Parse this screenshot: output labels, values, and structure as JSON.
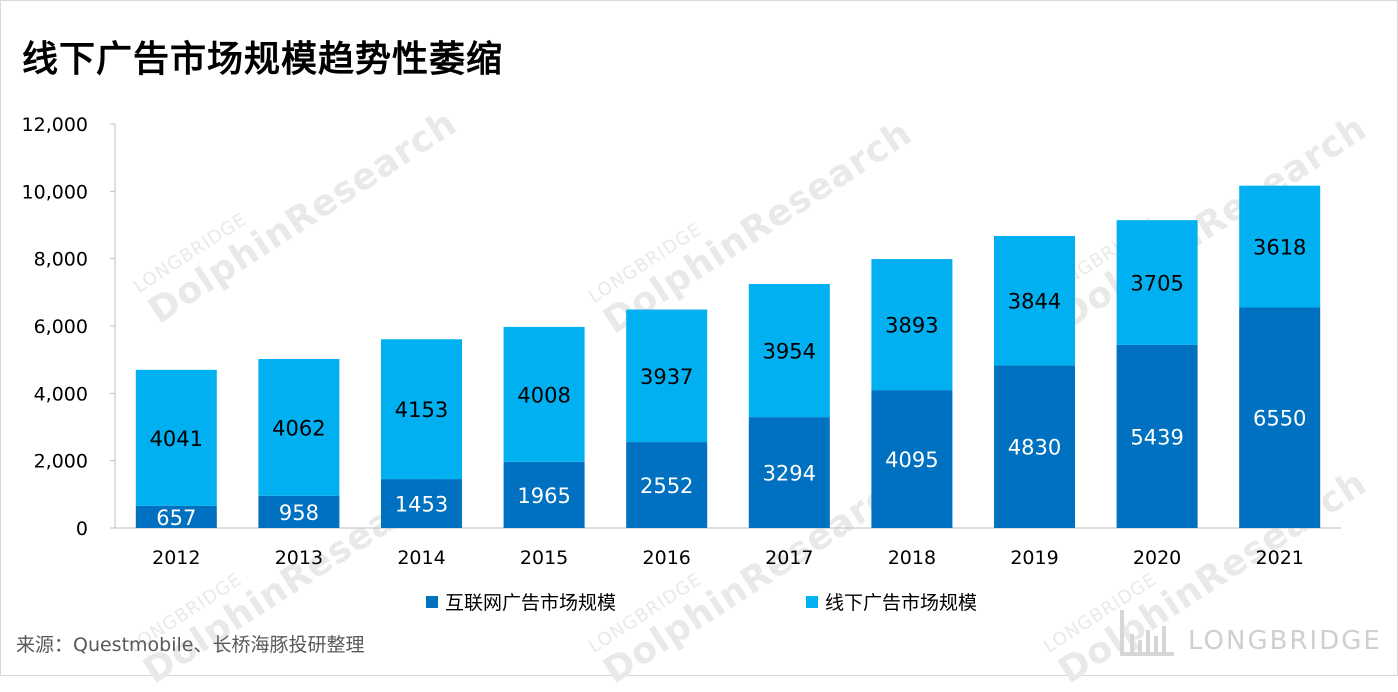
{
  "title": "线下广告市场规模趋势性萎缩",
  "source": "来源：Questmobile、长桥海豚投研整理",
  "watermark": {
    "line1": "LONGBRIDGE",
    "line2": "DolphinResearch"
  },
  "brand": "LONGBRIDGE",
  "colors": {
    "internet": "#0070C0",
    "offline": "#00B0F0",
    "axis": "#bfbfbf",
    "label_dark": "#000000",
    "label_light": "#ffffff"
  },
  "chart_data": {
    "type": "bar",
    "stacked": true,
    "title": "线下广告市场规模趋势性萎缩",
    "xlabel": "",
    "ylabel": "",
    "categories": [
      "2012",
      "2013",
      "2014",
      "2015",
      "2016",
      "2017",
      "2018",
      "2019",
      "2020",
      "2021"
    ],
    "series": [
      {
        "name": "互联网广告市场规模",
        "color": "#0070C0",
        "label_color": "#ffffff",
        "values": [
          657,
          958,
          1453,
          1965,
          2552,
          3294,
          4095,
          4830,
          5439,
          6550
        ]
      },
      {
        "name": "线下广告市场规模",
        "color": "#00B0F0",
        "label_color": "#000000",
        "values": [
          4041,
          4062,
          4153,
          4008,
          3937,
          3954,
          3893,
          3844,
          3705,
          3618
        ]
      }
    ],
    "ylim": [
      0,
      12000
    ],
    "yticks": [
      0,
      2000,
      4000,
      6000,
      8000,
      10000,
      12000
    ],
    "ytick_labels": [
      "0",
      "2,000",
      "4,000",
      "6,000",
      "8,000",
      "10,000",
      "12,000"
    ],
    "grid": false,
    "legend_position": "bottom"
  }
}
